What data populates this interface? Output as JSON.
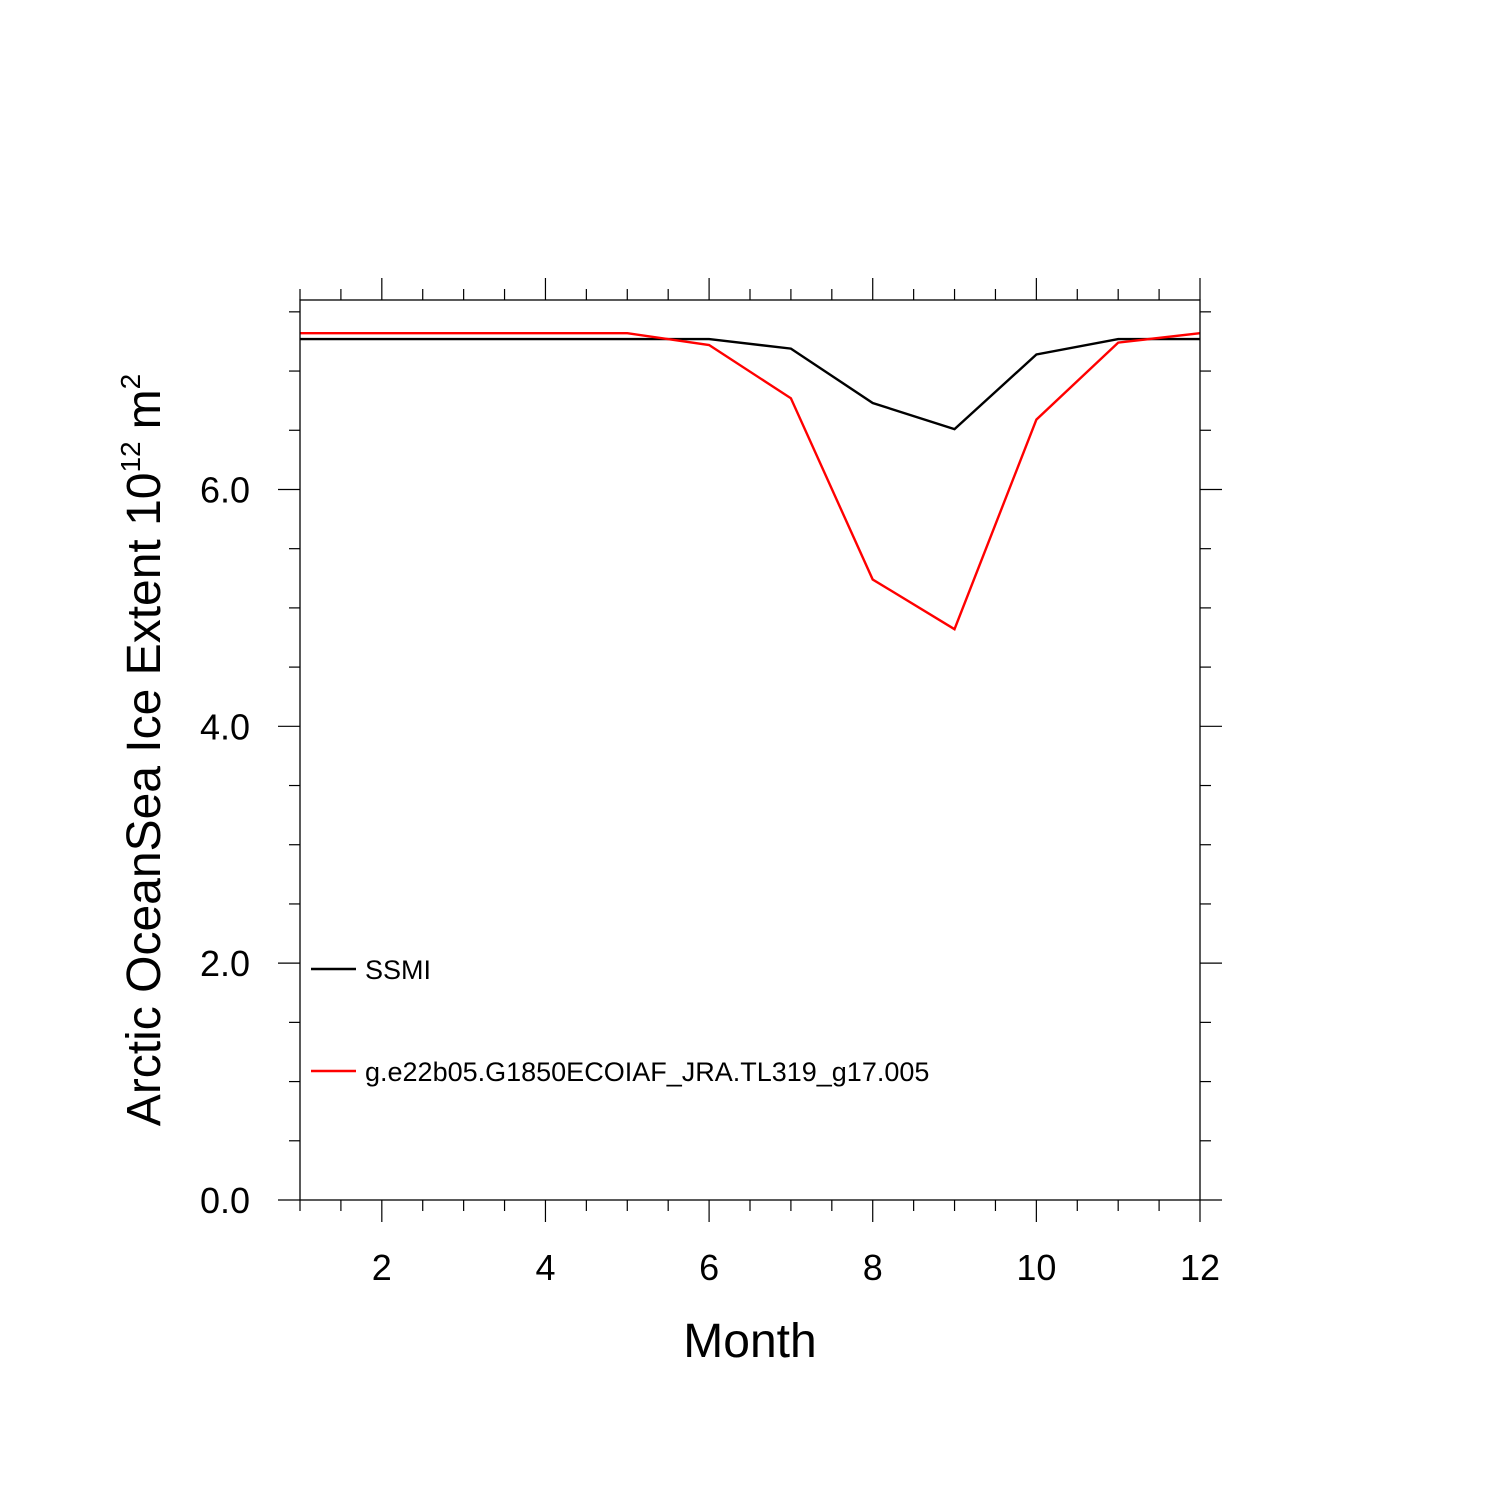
{
  "chart_data": {
    "type": "line",
    "xlabel": "Month",
    "ylabel": {
      "text": "Arctic OceanSea Ice Extent 10",
      "exponent": "12",
      "unit": "m",
      "unit_exponent": "2"
    },
    "xlim": [
      1,
      12
    ],
    "ylim": [
      0,
      7.6
    ],
    "x": [
      1,
      2,
      3,
      4,
      5,
      6,
      7,
      8,
      9,
      10,
      11,
      12
    ],
    "x_ticks": [
      {
        "value": 2,
        "label": "2"
      },
      {
        "value": 4,
        "label": "4"
      },
      {
        "value": 6,
        "label": "6"
      },
      {
        "value": 8,
        "label": "8"
      },
      {
        "value": 10,
        "label": "10"
      },
      {
        "value": 12,
        "label": "12"
      }
    ],
    "y_ticks": [
      {
        "value": 0,
        "label": "0.0"
      },
      {
        "value": 2,
        "label": "2.0"
      },
      {
        "value": 4,
        "label": "4.0"
      },
      {
        "value": 6,
        "label": "6.0"
      }
    ],
    "x_minor_step": 0.5,
    "y_minor_step": 0.5,
    "grid": false,
    "legend_position": "bottom-left",
    "series": [
      {
        "name": "SSMI",
        "color": "#000000",
        "values": [
          7.27,
          7.27,
          7.27,
          7.27,
          7.27,
          7.27,
          7.19,
          6.73,
          6.51,
          7.14,
          7.27,
          7.27
        ]
      },
      {
        "name": "g.e22b05.G1850ECOIAF_JRA.TL319_g17.005",
        "color": "#ff0000",
        "values": [
          7.32,
          7.32,
          7.32,
          7.32,
          7.32,
          7.22,
          6.77,
          5.24,
          4.82,
          6.59,
          7.24,
          7.32
        ]
      }
    ]
  }
}
